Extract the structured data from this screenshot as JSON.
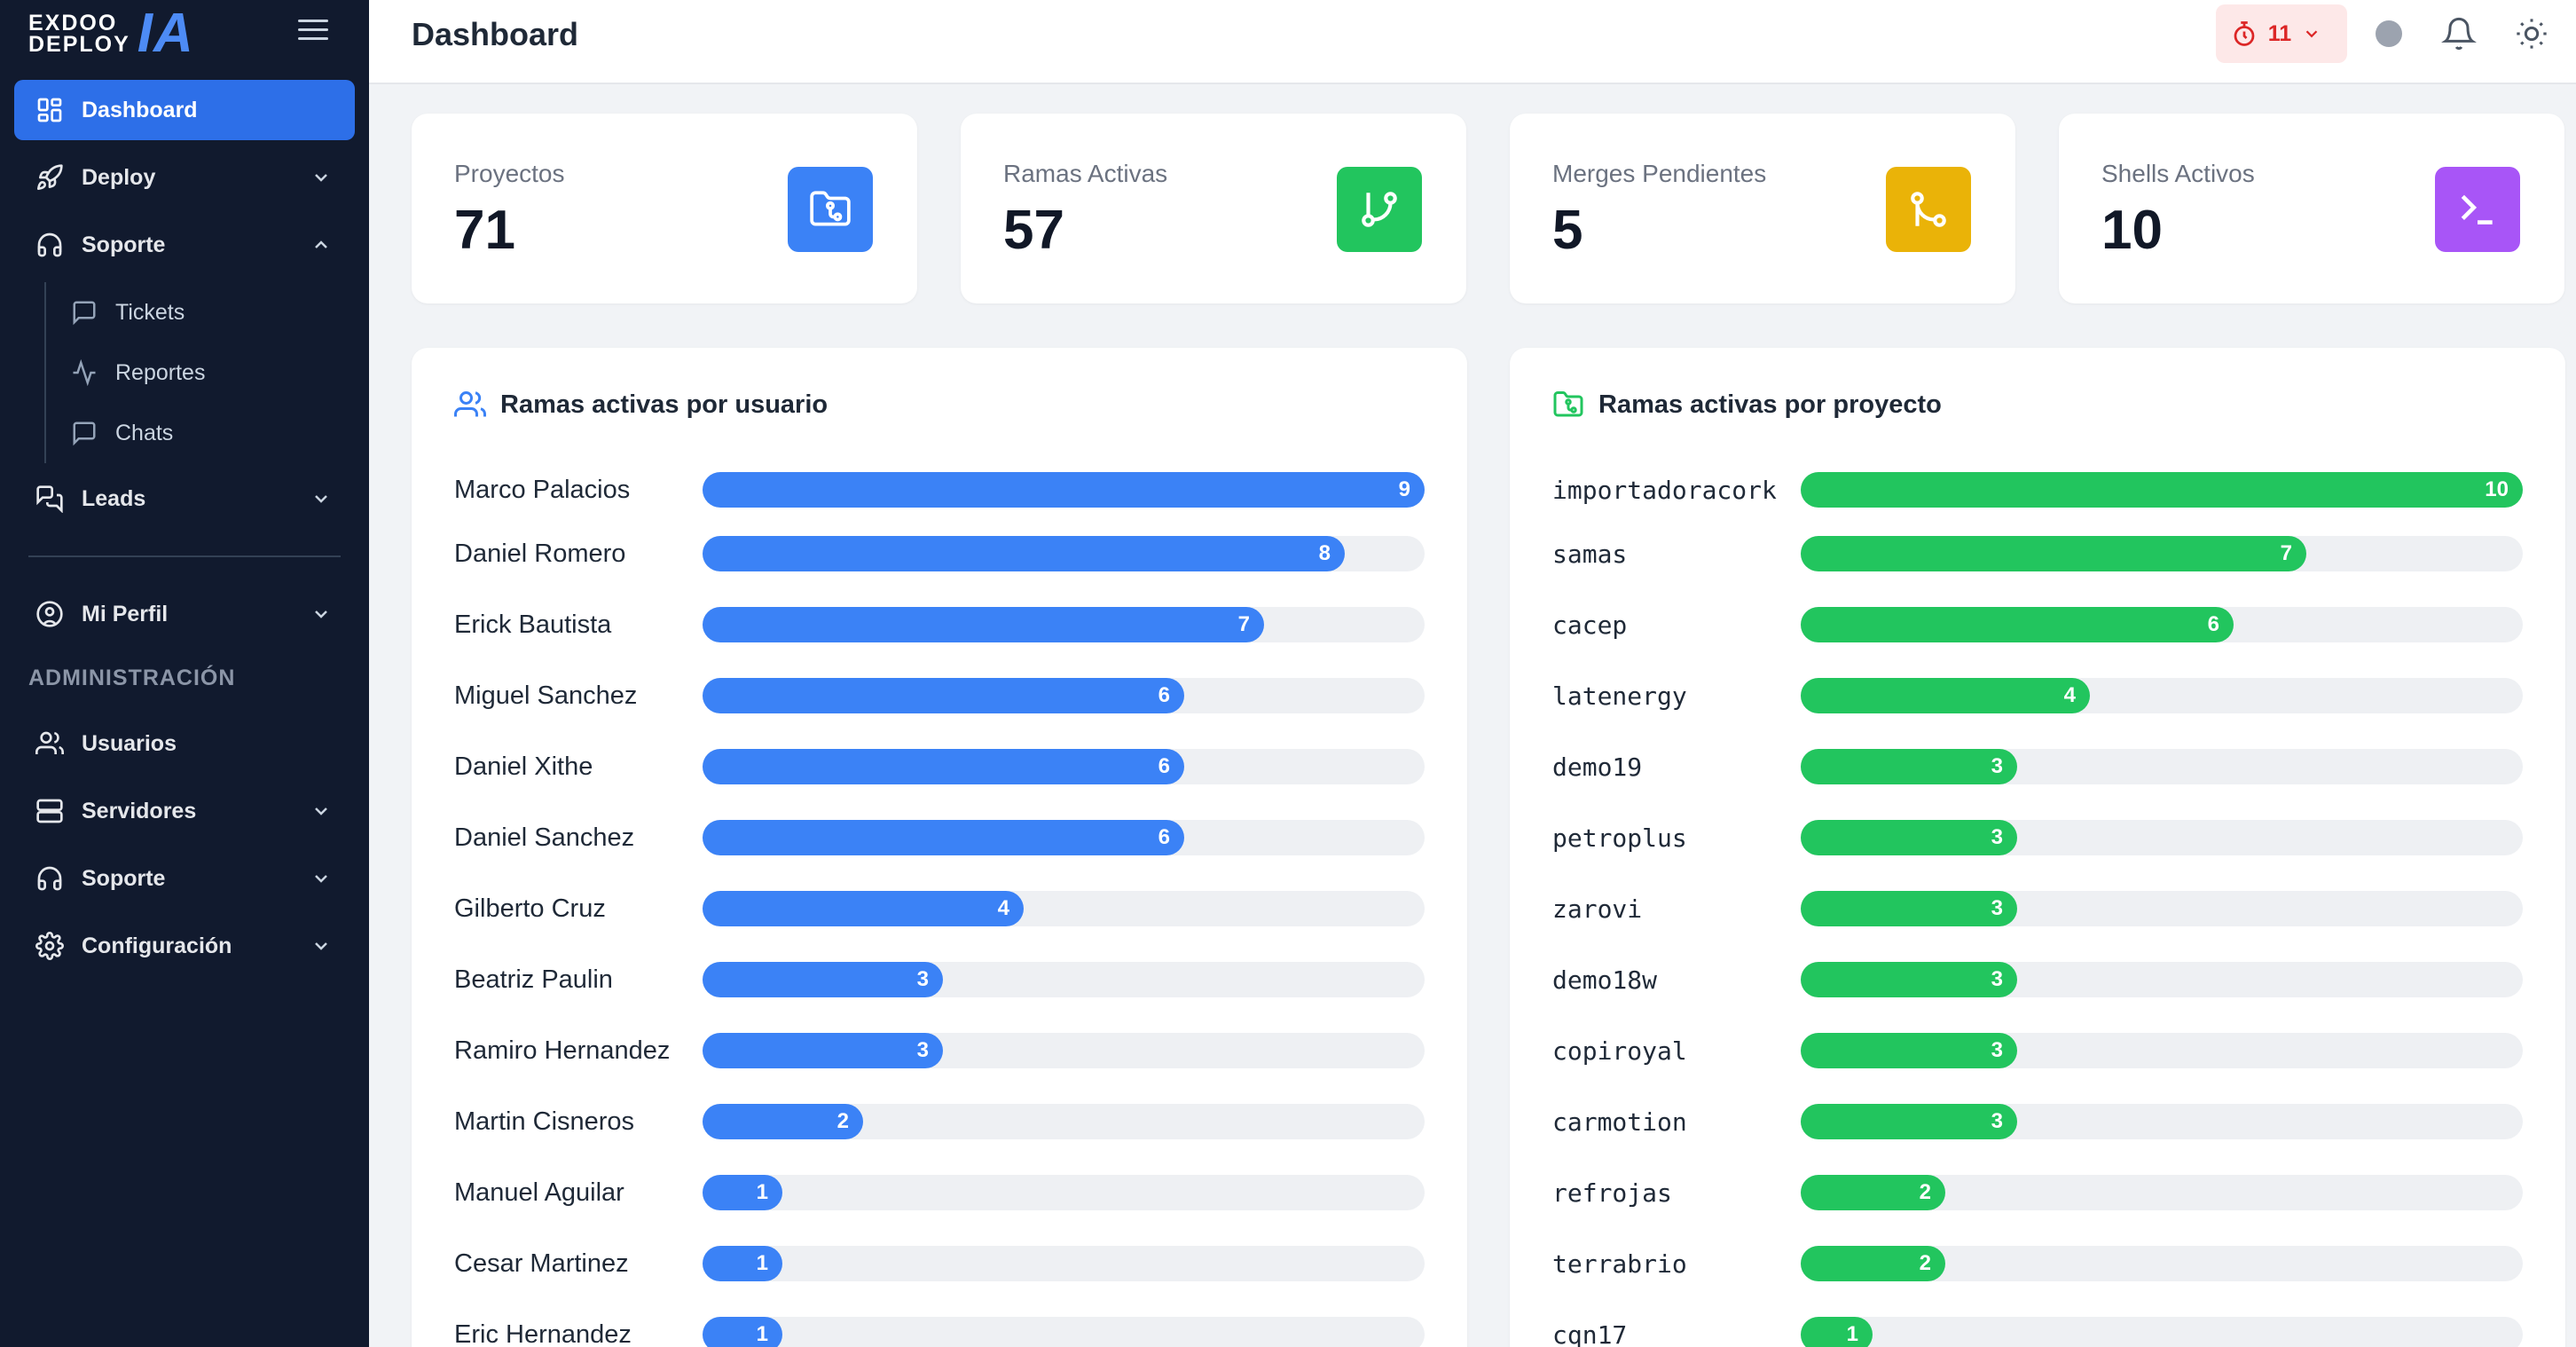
{
  "brand": {
    "line1": "EXDOO",
    "line2": "DEPLOY",
    "mark": "IA"
  },
  "sidebar": {
    "items": [
      {
        "label": "Dashboard",
        "icon": "dashboard-icon",
        "active": true
      },
      {
        "label": "Deploy",
        "icon": "rocket-icon"
      },
      {
        "label": "Soporte",
        "icon": "headset-icon",
        "expanded": true
      },
      {
        "label": "Leads",
        "icon": "chat-bubbles-icon"
      },
      {
        "label": "Mi Perfil",
        "icon": "user-circle-icon"
      },
      {
        "label": "Usuarios",
        "icon": "users-icon"
      },
      {
        "label": "Servidores",
        "icon": "server-icon"
      },
      {
        "label": "Soporte",
        "icon": "headset-icon"
      },
      {
        "label": "Configuración",
        "icon": "gear-icon"
      }
    ],
    "soporte_sub": [
      {
        "label": "Tickets",
        "icon": "message-icon"
      },
      {
        "label": "Reportes",
        "icon": "activity-icon"
      },
      {
        "label": "Chats",
        "icon": "message-icon"
      }
    ],
    "section_admin": "ADMINISTRACIÓN"
  },
  "header": {
    "title": "Dashboard",
    "timer_count": "11"
  },
  "stats": [
    {
      "label": "Proyectos",
      "value": "71",
      "color": "#3b82f6",
      "icon": "folder-git-icon"
    },
    {
      "label": "Ramas Activas",
      "value": "57",
      "color": "#22c55e",
      "icon": "git-branch-icon"
    },
    {
      "label": "Merges Pendientes",
      "value": "5",
      "color": "#eab308",
      "icon": "git-merge-icon"
    },
    {
      "label": "Shells Activos",
      "value": "10",
      "color": "#a855f7",
      "icon": "terminal-icon"
    }
  ],
  "chart_data": [
    {
      "type": "bar",
      "title": "Ramas activas por usuario",
      "categories": [
        "Marco Palacios",
        "Daniel Romero",
        "Erick Bautista",
        "Miguel Sanchez",
        "Daniel Xithe",
        "Daniel Sanchez",
        "Gilberto Cruz",
        "Beatriz Paulin",
        "Ramiro Hernandez",
        "Martin Cisneros",
        "Manuel Aguilar",
        "Cesar Martinez",
        "Eric Hernandez"
      ],
      "values": [
        9,
        8,
        7,
        6,
        6,
        6,
        4,
        3,
        3,
        2,
        1,
        1,
        1
      ],
      "xlim": [
        0,
        9
      ],
      "color": "#3b82f6"
    },
    {
      "type": "bar",
      "title": "Ramas activas por proyecto",
      "categories": [
        "importadoracork",
        "samas",
        "cacep",
        "latenergy",
        "demo19",
        "petroplus",
        "zarovi",
        "demo18w",
        "copiroyal",
        "carmotion",
        "refrojas",
        "terrabrio",
        "cqn17"
      ],
      "values": [
        10,
        7,
        6,
        4,
        3,
        3,
        3,
        3,
        3,
        3,
        2,
        2,
        1
      ],
      "xlim": [
        0,
        10
      ],
      "color": "#22c55e"
    }
  ]
}
